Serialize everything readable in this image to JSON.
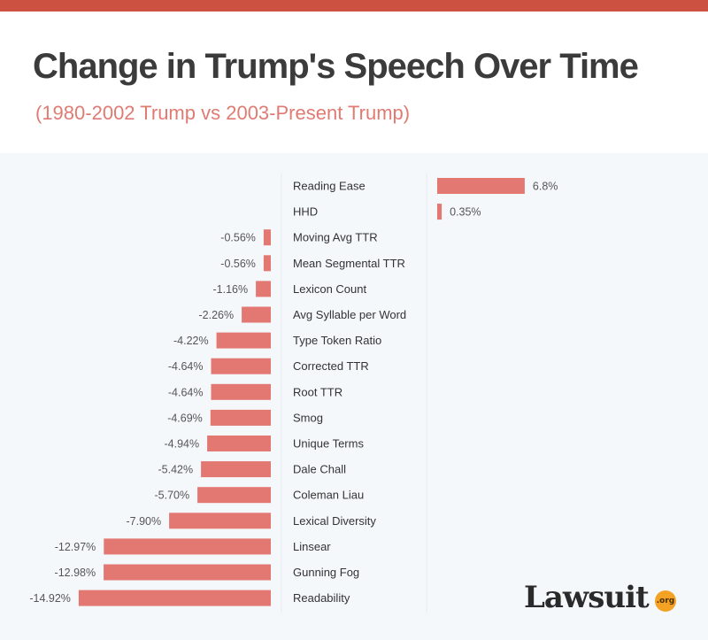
{
  "header": {
    "title": "Change in Trump's Speech Over Time",
    "subtitle": "(1980-2002 Trump vs 2003-Present Trump)"
  },
  "logo": {
    "text": "Lawsuit",
    "badge": ".org"
  },
  "colors": {
    "accent_bar": "#cd5140",
    "bars": "#e37873",
    "title": "#3b3b3b",
    "subtitle": "#e07b73",
    "panel_background": "#f5f8fb",
    "logo_badge": "#f3a223"
  },
  "chart_data": {
    "type": "bar",
    "orientation": "horizontal",
    "title": "Change in Trump's Speech Over Time",
    "subtitle": "(1980-2002 Trump vs 2003-Present Trump)",
    "unit": "%",
    "categories": [
      "Reading Ease",
      "HHD",
      "Moving Avg TTR",
      "Mean Segmental TTR",
      "Lexicon Count",
      "Avg Syllable per Word",
      "Type Token Ratio",
      "Corrected TTR",
      "Root TTR",
      "Smog",
      "Unique Terms",
      "Dale Chall",
      "Coleman Liau",
      "Lexical Diversity",
      "Linsear",
      "Gunning Fog",
      "Readability"
    ],
    "values": [
      6.8,
      0.35,
      -0.56,
      -0.56,
      -1.16,
      -2.26,
      -4.22,
      -4.64,
      -4.64,
      -4.69,
      -4.94,
      -5.42,
      -5.7,
      -7.9,
      -12.97,
      -12.98,
      -14.92
    ],
    "labels": [
      "6.8%",
      "0.35%",
      "-0.56%",
      "-0.56%",
      "-1.16%",
      "-2.26%",
      "-4.22%",
      "-4.64%",
      "-4.64%",
      "-4.69%",
      "-4.94%",
      "-5.42%",
      "-5.70%",
      "-7.90%",
      "-12.97%",
      "-12.98%",
      "-14.92%"
    ],
    "grid": false,
    "legend": "none"
  }
}
